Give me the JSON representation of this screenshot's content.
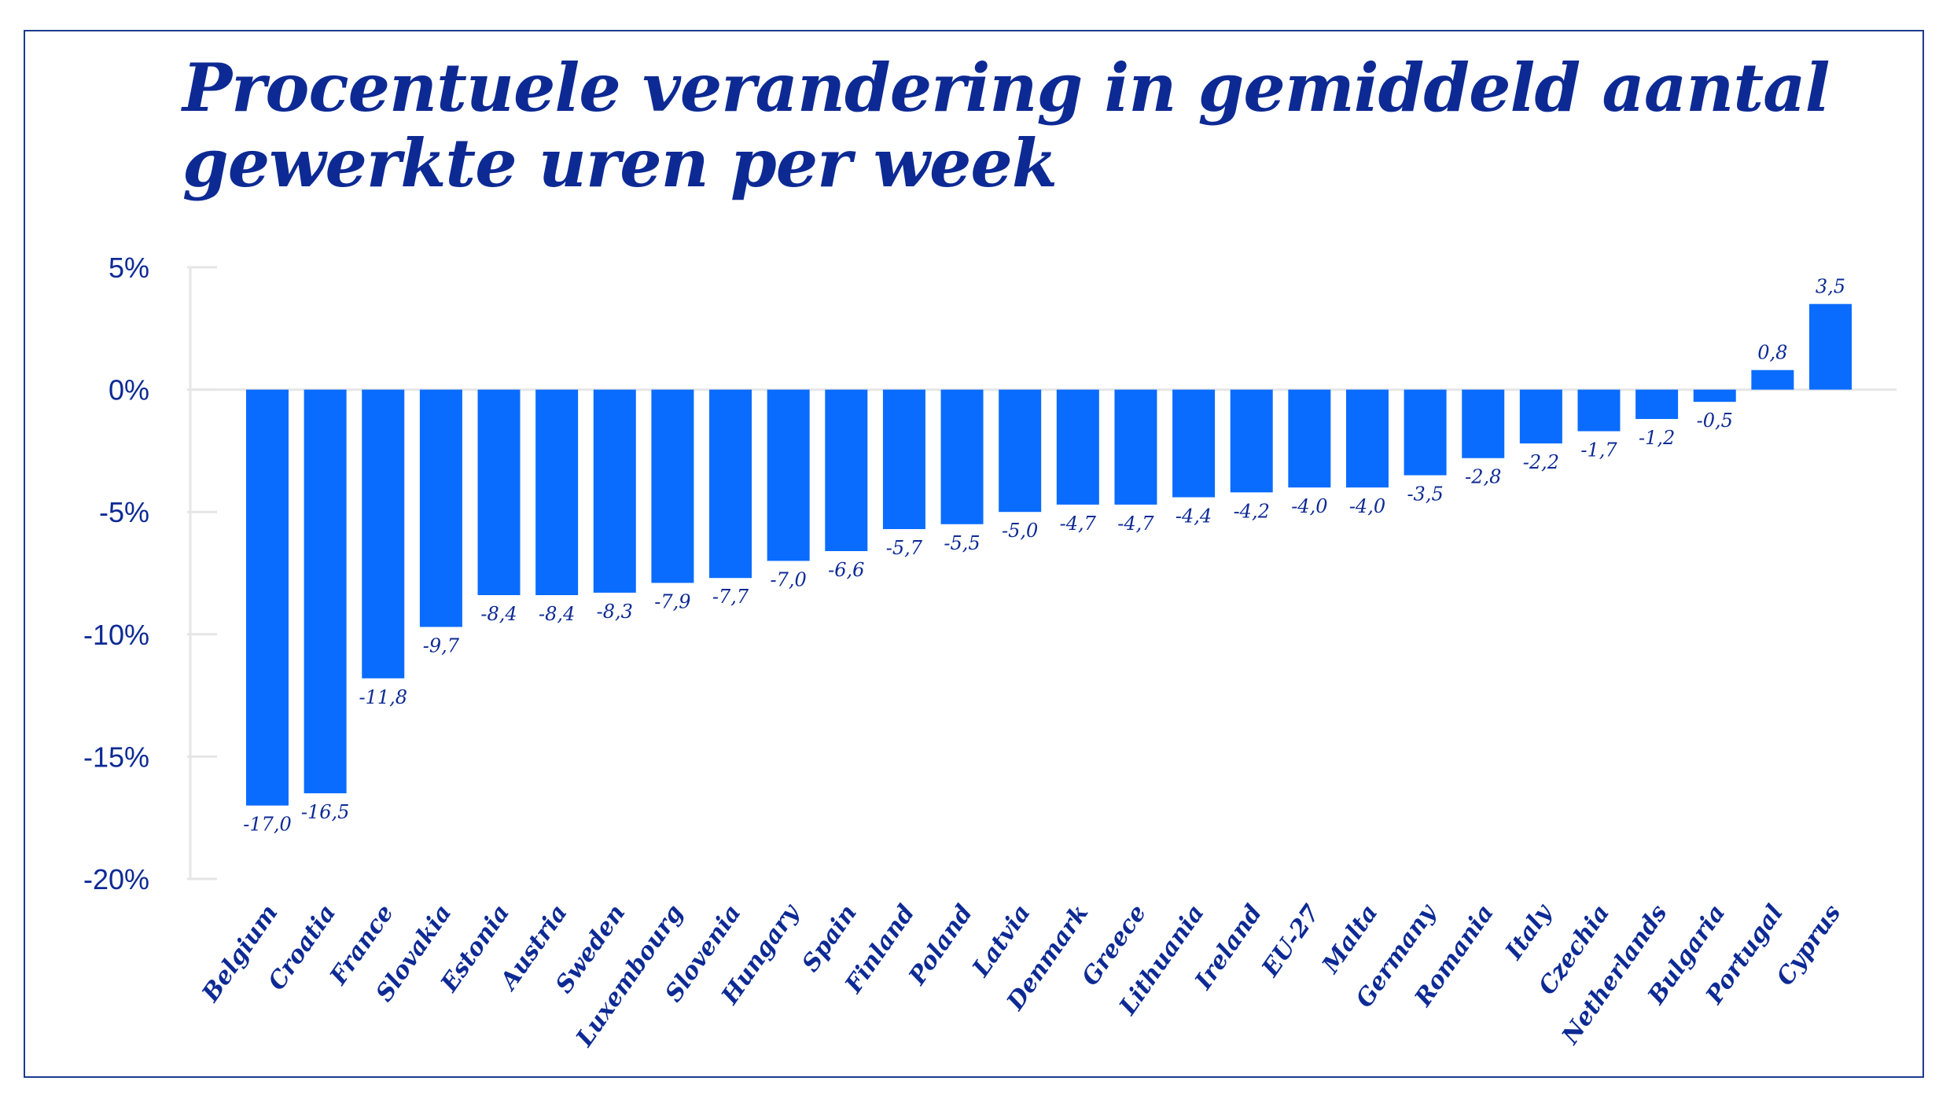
{
  "chart_data": {
    "type": "bar",
    "title": "Procentuele verandering in gemiddeld aantal gewerkte uren per week",
    "xlabel": "",
    "ylabel": "",
    "ylim": [
      -20,
      5
    ],
    "yticks": [
      5,
      0,
      -5,
      -10,
      -15,
      -20
    ],
    "ytick_labels": [
      "5%",
      "0%",
      "-5%",
      "-10%",
      "-15%",
      "-20%"
    ],
    "bar_color": "#0a6cff",
    "text_color": "#0d2a94",
    "grid": false,
    "categories": [
      "Belgium",
      "Croatia",
      "France",
      "Slovakia",
      "Estonia",
      "Austria",
      "Sweden",
      "Luxembourg",
      "Slovenia",
      "Hungary",
      "Spain",
      "Finland",
      "Poland",
      "Latvia",
      "Denmark",
      "Greece",
      "Lithuania",
      "Ireland",
      "EU-27",
      "Malta",
      "Germany",
      "Romania",
      "Italy",
      "Czechia",
      "Netherlands",
      "Bulgaria",
      "Portugal",
      "Cyprus"
    ],
    "values": [
      -17.0,
      -16.5,
      -11.8,
      -9.7,
      -8.4,
      -8.4,
      -8.3,
      -7.9,
      -7.7,
      -7.0,
      -6.6,
      -5.7,
      -5.5,
      -5.0,
      -4.7,
      -4.7,
      -4.4,
      -4.2,
      -4.0,
      -4.0,
      -3.5,
      -2.8,
      -2.2,
      -1.7,
      -1.2,
      -0.5,
      0.8,
      3.5
    ],
    "value_labels": [
      "-17,0",
      "-16,5",
      "-11,8",
      "-9,7",
      "-8,4",
      "-8,4",
      "-8,3",
      "-7,9",
      "-7,7",
      "-7,0",
      "-6,6",
      "-5,7",
      "-5,5",
      "-5,0",
      "-4,7",
      "-4,7",
      "-4,4",
      "-4,2",
      "-4,0",
      "-4,0",
      "-3,5",
      "-2,8",
      "-2,2",
      "-1,7",
      "-1,2",
      "-0,5",
      "0,8",
      "3,5"
    ]
  }
}
